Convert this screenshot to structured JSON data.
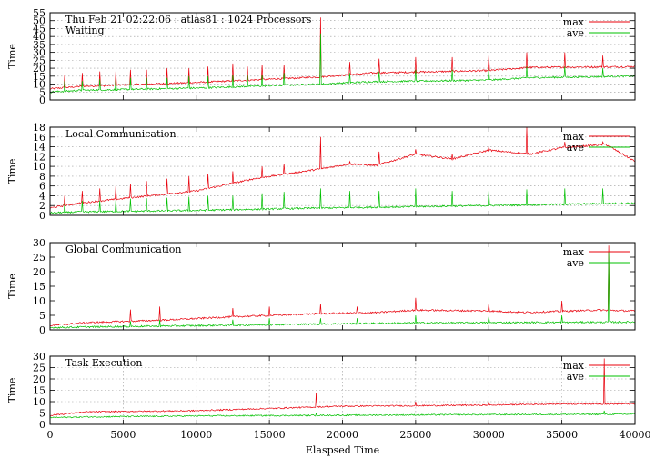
{
  "chart_data": [
    {
      "type": "line",
      "title": "Thu Feb 21 02:22:06 : atlas81 : 1024 Processors",
      "annotation": "Waiting",
      "ylabel": "Time",
      "xlabel": "",
      "xlim": [
        0,
        40000
      ],
      "ylim": [
        0,
        55
      ],
      "yticks": [
        0,
        5,
        10,
        15,
        20,
        25,
        30,
        35,
        40,
        45,
        50,
        55
      ],
      "grid": true,
      "legend_position": "top-right",
      "series": [
        {
          "name": "max",
          "color": "#e8000b",
          "baseline_x": [
            0,
            2000,
            10000,
            18500,
            22000,
            30000,
            32800,
            40000
          ],
          "baseline_y": [
            7,
            8.5,
            11,
            14.5,
            17,
            18.5,
            20.5,
            21
          ],
          "spike_x": [
            1000,
            2200,
            3400,
            4500,
            5500,
            6600,
            8000,
            9500,
            10800,
            12500,
            13500,
            14500,
            16000,
            18500,
            20500,
            22500,
            25000,
            27500,
            30000,
            32600,
            35200,
            37800
          ],
          "spike_y": [
            16,
            17,
            18,
            18,
            19,
            19,
            20,
            20,
            21,
            23,
            21,
            22,
            22,
            52,
            24,
            26,
            27,
            27,
            28,
            30,
            30,
            28
          ]
        },
        {
          "name": "ave",
          "color": "#00c000",
          "baseline_x": [
            0,
            2000,
            10000,
            18500,
            22000,
            30000,
            32800,
            40000
          ],
          "baseline_y": [
            5,
            6,
            7.5,
            10,
            11.5,
            12.5,
            14,
            15
          ],
          "spike_x": [
            1000,
            2200,
            3400,
            4500,
            5500,
            6600,
            8000,
            9500,
            10800,
            12500,
            13500,
            14500,
            16000,
            18500,
            20500,
            22500,
            25000,
            27500,
            30000,
            32600,
            35200,
            37800
          ],
          "spike_y": [
            12,
            12,
            13,
            13,
            14,
            14,
            14,
            15,
            15,
            16,
            16,
            16,
            17,
            42,
            17,
            18,
            19,
            19,
            20,
            21,
            21,
            20
          ]
        }
      ]
    },
    {
      "type": "line",
      "title": "",
      "annotation": "Local Communication",
      "ylabel": "Time",
      "xlabel": "",
      "xlim": [
        0,
        40000
      ],
      "ylim": [
        0,
        18
      ],
      "yticks": [
        0,
        2,
        4,
        6,
        8,
        10,
        12,
        14,
        16,
        18
      ],
      "grid": true,
      "legend_position": "top-right",
      "series": [
        {
          "name": "max",
          "color": "#e8000b",
          "baseline_x": [
            0,
            2000,
            10000,
            14000,
            18500,
            20500,
            22300,
            25000,
            27500,
            30000,
            32800,
            35000,
            38000,
            40000
          ],
          "baseline_y": [
            1.5,
            2.5,
            5,
            7.5,
            9.5,
            10.5,
            10.2,
            12.5,
            11.5,
            13.3,
            12.5,
            13.8,
            14.5,
            11
          ],
          "spike_x": [
            1000,
            2200,
            3400,
            4500,
            5500,
            6600,
            8000,
            9500,
            10800,
            12500,
            14500,
            16000,
            18500,
            20500,
            22500,
            25000,
            27500,
            30000,
            32600,
            35200,
            37800
          ],
          "spike_y": [
            4,
            5,
            5.5,
            6,
            6.5,
            7,
            7.5,
            8,
            8.5,
            9,
            10,
            10.5,
            16,
            11,
            13,
            13.5,
            12.5,
            14,
            18,
            15,
            15
          ]
        },
        {
          "name": "ave",
          "color": "#00c000",
          "baseline_x": [
            0,
            2000,
            10000,
            18500,
            30000,
            40000
          ],
          "baseline_y": [
            0.5,
            0.7,
            1,
            1.5,
            2,
            2.5
          ],
          "spike_x": [
            1000,
            2200,
            3400,
            4500,
            5500,
            6600,
            8000,
            9500,
            10800,
            12500,
            14500,
            16000,
            18500,
            20500,
            22500,
            25000,
            27500,
            30000,
            32600,
            35200,
            37800
          ],
          "spike_y": [
            2.5,
            3,
            3,
            3.2,
            3.4,
            3.5,
            3.6,
            3.8,
            4,
            4,
            4.5,
            4.8,
            5.5,
            5,
            5,
            5.5,
            5,
            5,
            5.3,
            5.5,
            5.5
          ]
        }
      ]
    },
    {
      "type": "line",
      "title": "",
      "annotation": "Global Communication",
      "ylabel": "Time",
      "xlabel": "",
      "xlim": [
        0,
        40000
      ],
      "ylim": [
        0,
        30
      ],
      "yticks": [
        0,
        5,
        10,
        15,
        20,
        25,
        30
      ],
      "grid": false,
      "legend_position": "top-right",
      "series": [
        {
          "name": "max",
          "color": "#e8000b",
          "baseline_x": [
            0,
            2500,
            7500,
            12500,
            18000,
            22500,
            25000,
            30000,
            32500,
            37500,
            40000
          ],
          "baseline_y": [
            1.5,
            2.5,
            3.3,
            4.5,
            5.5,
            6,
            6.8,
            6.5,
            6,
            6.8,
            6.5
          ],
          "spike_x": [
            5500,
            7500,
            12500,
            15000,
            18500,
            21000,
            25000,
            30000,
            35000,
            38200
          ],
          "spike_y": [
            7,
            8,
            7.5,
            8,
            9,
            8,
            11,
            9,
            10,
            29
          ]
        },
        {
          "name": "ave",
          "color": "#00c000",
          "baseline_x": [
            0,
            2500,
            7500,
            12500,
            18000,
            25000,
            30000,
            40000
          ],
          "baseline_y": [
            0.8,
            1,
            1.3,
            1.6,
            2,
            2.4,
            2.5,
            2.7
          ],
          "spike_x": [
            5500,
            7500,
            12500,
            15000,
            18500,
            21000,
            25000,
            30000,
            35000,
            38200
          ],
          "spike_y": [
            3,
            3.5,
            3.5,
            4,
            4,
            4,
            5,
            4.5,
            5,
            27
          ]
        }
      ]
    },
    {
      "type": "line",
      "title": "",
      "annotation": "Task Execution",
      "ylabel": "Time",
      "xlabel": "Elaspsed Time",
      "xlim": [
        0,
        40000
      ],
      "ylim": [
        0,
        30
      ],
      "yticks": [
        0,
        5,
        10,
        15,
        20,
        25,
        30
      ],
      "xticks": [
        0,
        5000,
        10000,
        15000,
        20000,
        25000,
        30000,
        35000,
        40000
      ],
      "grid": true,
      "legend_position": "top-right",
      "series": [
        {
          "name": "max",
          "color": "#e8000b",
          "baseline_x": [
            0,
            2500,
            10000,
            15000,
            20000,
            25000,
            30000,
            35000,
            40000
          ],
          "baseline_y": [
            4,
            5.5,
            6,
            7,
            8,
            8.2,
            8.5,
            9,
            9
          ],
          "spike_x": [
            18200,
            25000,
            30000,
            37900
          ],
          "spike_y": [
            14,
            10,
            10,
            29
          ]
        },
        {
          "name": "ave",
          "color": "#00c000",
          "baseline_x": [
            0,
            2500,
            10000,
            20000,
            30000,
            40000
          ],
          "baseline_y": [
            3,
            3.3,
            3.7,
            4,
            4.3,
            4.5
          ],
          "spike_x": [
            18200,
            37900
          ],
          "spike_y": [
            5,
            6
          ]
        }
      ]
    }
  ]
}
